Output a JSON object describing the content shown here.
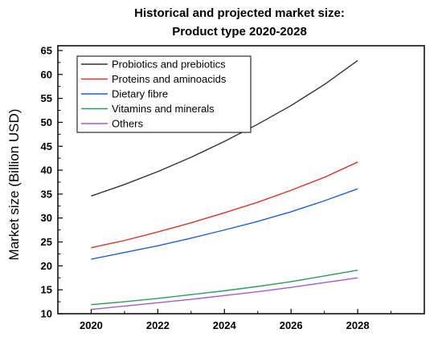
{
  "chart_data": {
    "type": "line",
    "title": "Historical and projected market size:",
    "subtitle": "Product type 2020-2028",
    "xlabel": "",
    "ylabel": "Market size (Billion USD)",
    "xlim": [
      2019,
      2030
    ],
    "ylim": [
      10,
      66
    ],
    "x": [
      2020,
      2021,
      2022,
      2023,
      2024,
      2025,
      2026,
      2027,
      2028
    ],
    "xticks": [
      2020,
      2022,
      2024,
      2026,
      2028
    ],
    "yticks": [
      10,
      15,
      20,
      25,
      30,
      35,
      40,
      45,
      50,
      55,
      60,
      65
    ],
    "grid": false,
    "legend_position": "top-left",
    "series": [
      {
        "name": "Probiotics and prebiotics",
        "color": "#333333",
        "values": [
          34.6,
          37.0,
          39.7,
          42.7,
          46.0,
          49.6,
          53.5,
          57.9,
          62.9
        ]
      },
      {
        "name": "Proteins and aminoacids",
        "color": "#d9342b",
        "values": [
          23.8,
          25.3,
          27.1,
          29.0,
          31.1,
          33.3,
          35.8,
          38.5,
          41.7
        ]
      },
      {
        "name": "Dietary fibre",
        "color": "#1f5fd6",
        "values": [
          21.4,
          22.8,
          24.2,
          25.8,
          27.5,
          29.3,
          31.3,
          33.6,
          36.1
        ]
      },
      {
        "name": "Vitamins and minerals",
        "color": "#2e9b5e",
        "values": [
          11.9,
          12.5,
          13.2,
          14.0,
          14.8,
          15.7,
          16.7,
          17.9,
          19.1
        ]
      },
      {
        "name": "Others",
        "color": "#a45ad6",
        "values": [
          10.9,
          11.6,
          12.3,
          13.0,
          13.8,
          14.6,
          15.5,
          16.5,
          17.5
        ]
      }
    ]
  }
}
